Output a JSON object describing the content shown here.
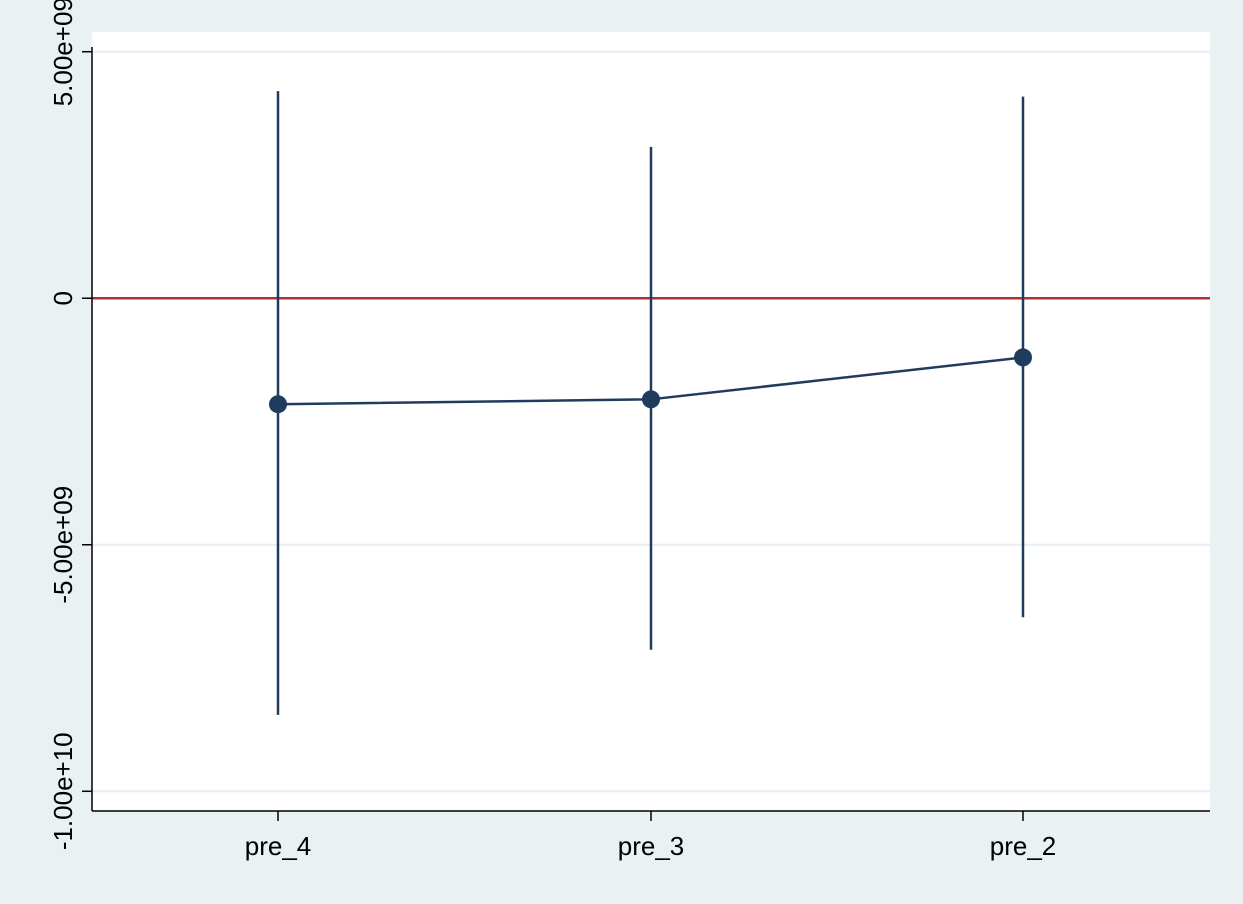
{
  "chart_data": {
    "type": "line",
    "title": "",
    "xlabel": "",
    "ylabel": "",
    "categories": [
      "pre_4",
      "pre_3",
      "pre_2"
    ],
    "series": [
      {
        "values": [
          -2150000000,
          -2050000000,
          -1200000000
        ],
        "ci_lower": [
          -8450000000,
          -7130000000,
          -6470000000
        ],
        "ci_upper": [
          4200000000,
          3070000000,
          4090000000
        ]
      }
    ],
    "reference_line": {
      "y": 0
    },
    "ylim": [
      -10400000000,
      5400000000
    ],
    "yticks": [
      {
        "value": 5000000000,
        "label": "5.00e+09"
      },
      {
        "value": 0,
        "label": "0"
      },
      {
        "value": -5000000000,
        "label": "-5.00e+09"
      },
      {
        "value": -10000000000,
        "label": "-1.00e+10"
      }
    ],
    "grid": true,
    "colors": {
      "series": "#1f3b5d",
      "reference_line": "#b0303a",
      "grid": "#e6eff2",
      "plot_background": "#ffffff",
      "background": "#eaf1f3"
    }
  }
}
